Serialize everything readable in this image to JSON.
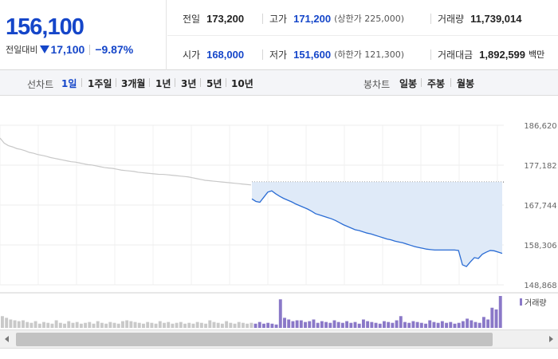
{
  "quote": {
    "price": "156,100",
    "change_label": "전일대비",
    "change_icon": "down-triangle-icon",
    "change_value": "17,100",
    "change_pct": "−9.87%",
    "prev_close_label": "전일",
    "prev_close": "173,200",
    "high_label": "고가",
    "high": "171,200",
    "upper_limit": "(상한가 225,000)",
    "volume_label": "거래량",
    "volume": "11,739,014",
    "open_label": "시가",
    "open": "168,000",
    "low_label": "저가",
    "low": "151,600",
    "lower_limit": "(하한가 121,300)",
    "turnover_label": "거래대금",
    "turnover": "1,892,599",
    "turnover_unit": "백만"
  },
  "tabs": {
    "line_chart_label": "선차트",
    "periods": [
      "1일",
      "1주일",
      "3개월",
      "1년",
      "3년",
      "5년",
      "10년"
    ],
    "active_period": "1일",
    "candle_label": "봉차트",
    "candles": [
      "일봉",
      "주봉",
      "월봉"
    ]
  },
  "colors": {
    "accent": "#1546c9",
    "line_today": "#2a6cd4",
    "line_prev": "#c8c8c8",
    "fill_today": "#dfeaf8",
    "volume": "#8a78c8"
  },
  "chart_data": {
    "type": "line",
    "y_ticks": [
      "186,620",
      "177,182",
      "167,744",
      "158,306",
      "148,868"
    ],
    "ylim": [
      148868,
      186620
    ],
    "prev_close": 173200,
    "volume_legend": "거래량",
    "series": [
      {
        "y": [
          183600,
          182400,
          181800,
          181500,
          181100,
          180900,
          180600,
          180200,
          180000,
          179700,
          179500,
          179300,
          179000,
          178800,
          178600,
          178400,
          178200,
          178000,
          177900,
          177700,
          177500,
          177300,
          177200,
          177000,
          176800,
          176600,
          176500,
          176400,
          176200,
          176000,
          175900,
          175800,
          175700,
          175500,
          175400,
          175300,
          175200,
          175100,
          175000,
          175000,
          174900,
          174800,
          174700,
          174600,
          174500,
          174400,
          174200,
          174000,
          173800,
          173600,
          173500,
          173400,
          173300,
          173200,
          173100,
          173000,
          172900,
          172800,
          172700,
          172600,
          172500
        ]
      },
      {
        "y": [
          169200,
          168600,
          168400,
          169600,
          170800,
          171100,
          170400,
          169800,
          169300,
          168900,
          168500,
          168000,
          167600,
          167200,
          166800,
          166300,
          165700,
          165400,
          165100,
          164800,
          164500,
          164100,
          163600,
          163100,
          162700,
          162300,
          161900,
          161700,
          161400,
          161100,
          160900,
          160600,
          160300,
          160000,
          159700,
          159500,
          159200,
          159000,
          158800,
          158500,
          158200,
          157900,
          157700,
          157500,
          157300,
          157200,
          157100,
          157100,
          157100,
          157100,
          157100,
          157100,
          157000,
          153600,
          153200,
          154300,
          155300,
          155100,
          156100,
          156600,
          157000,
          156900,
          156600,
          156300
        ]
      }
    ],
    "volume": [
      14,
      12,
      10,
      9,
      8,
      9,
      7,
      6,
      8,
      5,
      7,
      6,
      5,
      9,
      6,
      5,
      8,
      6,
      7,
      5,
      6,
      7,
      5,
      8,
      6,
      5,
      7,
      6,
      5,
      8,
      9,
      8,
      7,
      6,
      5,
      7,
      6,
      5,
      8,
      6,
      7,
      5,
      6,
      7,
      5,
      6,
      5,
      7,
      6,
      5,
      9,
      7,
      6,
      5,
      8,
      6,
      5,
      7,
      6,
      5,
      6,
      5,
      7,
      5,
      6,
      5,
      4,
      34,
      12,
      10,
      8,
      9,
      9,
      7,
      8,
      10,
      6,
      8,
      7,
      6,
      9,
      7,
      6,
      8,
      6,
      7,
      5,
      10,
      8,
      7,
      6,
      5,
      8,
      7,
      6,
      9,
      14,
      7,
      6,
      8,
      7,
      6,
      5,
      9,
      7,
      6,
      8,
      6,
      7,
      5,
      6,
      8,
      11,
      9,
      7,
      6,
      13,
      10,
      24,
      22,
      38
    ]
  }
}
